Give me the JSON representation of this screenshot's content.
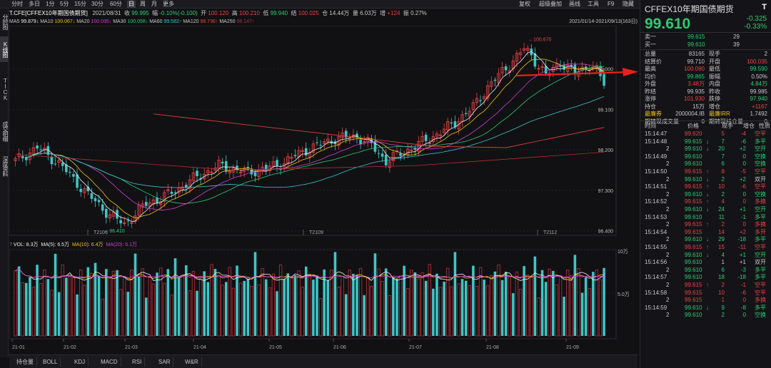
{
  "toolbar": {
    "periods": [
      "分时",
      "多日",
      "1分",
      "5分",
      "15分",
      "30分",
      "60分",
      "日",
      "周",
      "月",
      "更多"
    ],
    "active_period": "日",
    "right_items": [
      "复权",
      "超级叠加",
      "画线",
      "工具",
      "F9"
    ],
    "hide_label": "隐藏"
  },
  "leftnav": [
    "分时图",
    "K线图",
    "TICK",
    "成交明细",
    "深度资料"
  ],
  "infobar": {
    "name": "T.CFE[CFFEX10年期国债期货]",
    "date": "2021/08/31",
    "close_label": "收",
    "close": "99.995",
    "range_label": "幅",
    "range": "-0.10%(-0.100)",
    "open_label": "开",
    "open": "100.120",
    "high_label": "高",
    "high": "100.210",
    "low_label": "低",
    "low": "99.940",
    "settle_label": "结",
    "settle": "100.025",
    "oi_label": "仓",
    "oi": "14.44万",
    "vol_label": "量",
    "vol": "6.03万",
    "oichg_label": "增",
    "oichg": "+124",
    "amp_label": "振",
    "amp": "0.27%"
  },
  "mabar": {
    "items": [
      {
        "label": "MA5",
        "value": "99.879↓",
        "color": "#f0f0f0"
      },
      {
        "label": "MA10",
        "value": "100.067↓",
        "color": "#f1c40f"
      },
      {
        "label": "MA20",
        "value": "100.035↓",
        "color": "#d040d0"
      },
      {
        "label": "MA30",
        "value": "100.058↓",
        "color": "#2ecc71"
      },
      {
        "label": "MA60",
        "value": "99.582↑",
        "color": "#3ec6c6"
      },
      {
        "label": "MA120",
        "value": "98.736↑",
        "color": "#e84545"
      },
      {
        "label": "MA250",
        "value": "98.147↑",
        "color": "#b03030"
      }
    ],
    "date_range": "2021/01/14-2021/09/13(163日)"
  },
  "volbar": {
    "label": "VOL: 8.3万",
    "ma5": "MA(5): 6.5万",
    "ma10": "MA(10): 6.4万",
    "ma20": "MA(20): 6.1万"
  },
  "price_axis": [
    "100.000",
    "99.100",
    "98.200",
    "97.300",
    "96.400"
  ],
  "vol_axis": [
    "10万",
    "5.0万"
  ],
  "price_annotations": {
    "high": "100.670",
    "low": "96.410"
  },
  "contract_labels": [
    "T2106",
    "T2109",
    "T2112"
  ],
  "x_axis": [
    "21-01",
    "21-02",
    "21-03",
    "21-04",
    "21-05",
    "21-06",
    "21-07",
    "21-08",
    "21-09"
  ],
  "bottom_tabs": [
    "持仓量",
    "BOLL",
    "KDJ",
    "MACD",
    "RSI",
    "SAR",
    "W&R"
  ],
  "quote": {
    "title": "CFFEX10年期国债期货",
    "title_icon": "T",
    "price": "99.610",
    "change": "-0.325",
    "change_pct": "-0.33%",
    "ask_label": "卖一",
    "ask_price": "99.615",
    "ask_vol": "29",
    "bid_label": "买一",
    "bid_price": "99.610",
    "bid_vol": "39",
    "stats": [
      {
        "l1": "总量",
        "v1": "83165",
        "c1": "#c8c8c8",
        "l2": "现手",
        "v2": "2",
        "c2": "#c8c8c8"
      },
      {
        "l1": "结算价",
        "v1": "99.710",
        "c1": "#c8c8c8",
        "l2": "开盘",
        "v2": "100.035",
        "c2": "#e84545"
      },
      {
        "l1": "最高",
        "v1": "100.090",
        "c1": "#e84545",
        "l2": "最低",
        "v2": "99.590",
        "c2": "#2ecc71"
      },
      {
        "l1": "均价",
        "v1": "99.865",
        "c1": "#2ecc71",
        "l2": "振幅",
        "v2": "0.50%",
        "c2": "#c8c8c8"
      },
      {
        "l1": "外盘",
        "v1": "3.48万",
        "c1": "#e84545",
        "l2": "内盘",
        "v2": "4.84万",
        "c2": "#2ecc71"
      },
      {
        "l1": "昨结",
        "v1": "99.935",
        "c1": "#c8c8c8",
        "l2": "昨收",
        "v2": "99.985",
        "c2": "#c8c8c8"
      },
      {
        "l1": "涨停",
        "v1": "101.930",
        "c1": "#e84545",
        "l2": "跌停",
        "v2": "97.940",
        "c2": "#2ecc71"
      },
      {
        "l1": "持仓",
        "v1": "15万",
        "c1": "#c8c8c8",
        "l2": "增仓",
        "v2": "+1167",
        "c2": "#e84545"
      }
    ],
    "extra": [
      {
        "l1": "最廉券",
        "v1": "2000004.IB",
        "l2": "最廉IRR",
        "v2": "1.7492"
      },
      {
        "l1": "期转现成交量",
        "v1": "0",
        "l2": "期转现持仓量",
        "v2": "0"
      }
    ],
    "trade_headers": [
      "时间",
      "价格",
      "现手",
      "增仓",
      "性质"
    ],
    "trades": [
      {
        "t": "15:14:47",
        "p": "99.620",
        "pc": "#e84545",
        "a": "",
        "v": "5",
        "vc": "#e84545",
        "d": "-4",
        "n": "空平",
        "nc": "#e84545"
      },
      {
        "t": "15:14:48",
        "p": "99.615",
        "pc": "#2ecc71",
        "a": "↓",
        "v": "7",
        "vc": "#2ecc71",
        "d": "-6",
        "n": "多平",
        "nc": "#2ecc71"
      },
      {
        "t": "2",
        "p": "99.610",
        "pc": "#2ecc71",
        "a": "↓",
        "v": "20",
        "vc": "#2ecc71",
        "d": "+2",
        "n": "空开",
        "nc": "#2ecc71"
      },
      {
        "t": "15:14:49",
        "p": "99.610",
        "pc": "#2ecc71",
        "a": "",
        "v": "7",
        "vc": "#2ecc71",
        "d": "0",
        "n": "空换",
        "nc": "#2ecc71"
      },
      {
        "t": "2",
        "p": "99.610",
        "pc": "#2ecc71",
        "a": "",
        "v": "6",
        "vc": "#2ecc71",
        "d": "0",
        "n": "空换",
        "nc": "#2ecc71"
      },
      {
        "t": "15:14:50",
        "p": "99.615",
        "pc": "#e84545",
        "a": "↑",
        "v": "8",
        "vc": "#e84545",
        "d": "-5",
        "n": "空平",
        "nc": "#e84545"
      },
      {
        "t": "2",
        "p": "99.610",
        "pc": "#2ecc71",
        "a": "↓",
        "v": "2",
        "vc": "#2ecc71",
        "d": "+2",
        "n": "双开",
        "nc": "#c8c8c8"
      },
      {
        "t": "15:14:51",
        "p": "99.615",
        "pc": "#e84545",
        "a": "↑",
        "v": "10",
        "vc": "#e84545",
        "d": "-6",
        "n": "空平",
        "nc": "#e84545"
      },
      {
        "t": "2",
        "p": "99.610",
        "pc": "#2ecc71",
        "a": "↓",
        "v": "2",
        "vc": "#2ecc71",
        "d": "0",
        "n": "空换",
        "nc": "#2ecc71"
      },
      {
        "t": "15:14:52",
        "p": "99.615",
        "pc": "#e84545",
        "a": "↑",
        "v": "4",
        "vc": "#e84545",
        "d": "0",
        "n": "多换",
        "nc": "#e84545"
      },
      {
        "t": "2",
        "p": "99.610",
        "pc": "#2ecc71",
        "a": "↓",
        "v": "24",
        "vc": "#2ecc71",
        "d": "+1",
        "n": "空开",
        "nc": "#2ecc71"
      },
      {
        "t": "15:14:53",
        "p": "99.610",
        "pc": "#2ecc71",
        "a": "",
        "v": "11",
        "vc": "#2ecc71",
        "d": "-1",
        "n": "多平",
        "nc": "#2ecc71"
      },
      {
        "t": "2",
        "p": "99.615",
        "pc": "#e84545",
        "a": "↑",
        "v": "2",
        "vc": "#e84545",
        "d": "0",
        "n": "多换",
        "nc": "#e84545"
      },
      {
        "t": "15:14:54",
        "p": "99.615",
        "pc": "#e84545",
        "a": "",
        "v": "14",
        "vc": "#e84545",
        "d": "+2",
        "n": "多开",
        "nc": "#e84545"
      },
      {
        "t": "2",
        "p": "99.610",
        "pc": "#2ecc71",
        "a": "↓",
        "v": "29",
        "vc": "#2ecc71",
        "d": "-18",
        "n": "多平",
        "nc": "#2ecc71"
      },
      {
        "t": "15:14:55",
        "p": "99.615",
        "pc": "#e84545",
        "a": "↑",
        "v": "15",
        "vc": "#e84545",
        "d": "-11",
        "n": "空平",
        "nc": "#e84545"
      },
      {
        "t": "2",
        "p": "99.610",
        "pc": "#2ecc71",
        "a": "↓",
        "v": "4",
        "vc": "#2ecc71",
        "d": "+1",
        "n": "空开",
        "nc": "#2ecc71"
      },
      {
        "t": "15:14:56",
        "p": "99.610",
        "pc": "#2ecc71",
        "a": "",
        "v": "1",
        "vc": "#c8c8c8",
        "d": "+1",
        "n": "双开",
        "nc": "#c8c8c8"
      },
      {
        "t": "2",
        "p": "99.610",
        "pc": "#2ecc71",
        "a": "",
        "v": "6",
        "vc": "#2ecc71",
        "d": "-3",
        "n": "多平",
        "nc": "#2ecc71"
      },
      {
        "t": "15:14:57",
        "p": "99.610",
        "pc": "#2ecc71",
        "a": "",
        "v": "18",
        "vc": "#2ecc71",
        "d": "-18",
        "n": "多平",
        "nc": "#2ecc71"
      },
      {
        "t": "2",
        "p": "99.615",
        "pc": "#e84545",
        "a": "↑",
        "v": "2",
        "vc": "#e84545",
        "d": "-1",
        "n": "空平",
        "nc": "#e84545"
      },
      {
        "t": "15:14:58",
        "p": "99.615",
        "pc": "#e84545",
        "a": "",
        "v": "10",
        "vc": "#e84545",
        "d": "-6",
        "n": "空平",
        "nc": "#e84545"
      },
      {
        "t": "2",
        "p": "99.615",
        "pc": "#e84545",
        "a": "",
        "v": "1",
        "vc": "#e84545",
        "d": "0",
        "n": "多换",
        "nc": "#e84545"
      },
      {
        "t": "15:14:59",
        "p": "99.610",
        "pc": "#2ecc71",
        "a": "↓",
        "v": "9",
        "vc": "#2ecc71",
        "d": "-8",
        "n": "多平",
        "nc": "#2ecc71"
      },
      {
        "t": "2",
        "p": "99.610",
        "pc": "#2ecc71",
        "a": "",
        "v": "2",
        "vc": "#2ecc71",
        "d": "0",
        "n": "空换",
        "nc": "#2ecc71"
      }
    ]
  },
  "chart_data": {
    "type": "candlestick",
    "price_range": [
      96.3,
      100.9
    ],
    "volume_range": [
      0,
      100000
    ],
    "candles_seed": {
      "start": 97.95,
      "n": 163
    },
    "annotation_line_color": "#e82020",
    "colors": {
      "up": "#e84545",
      "down": "#3ec6c6"
    }
  }
}
